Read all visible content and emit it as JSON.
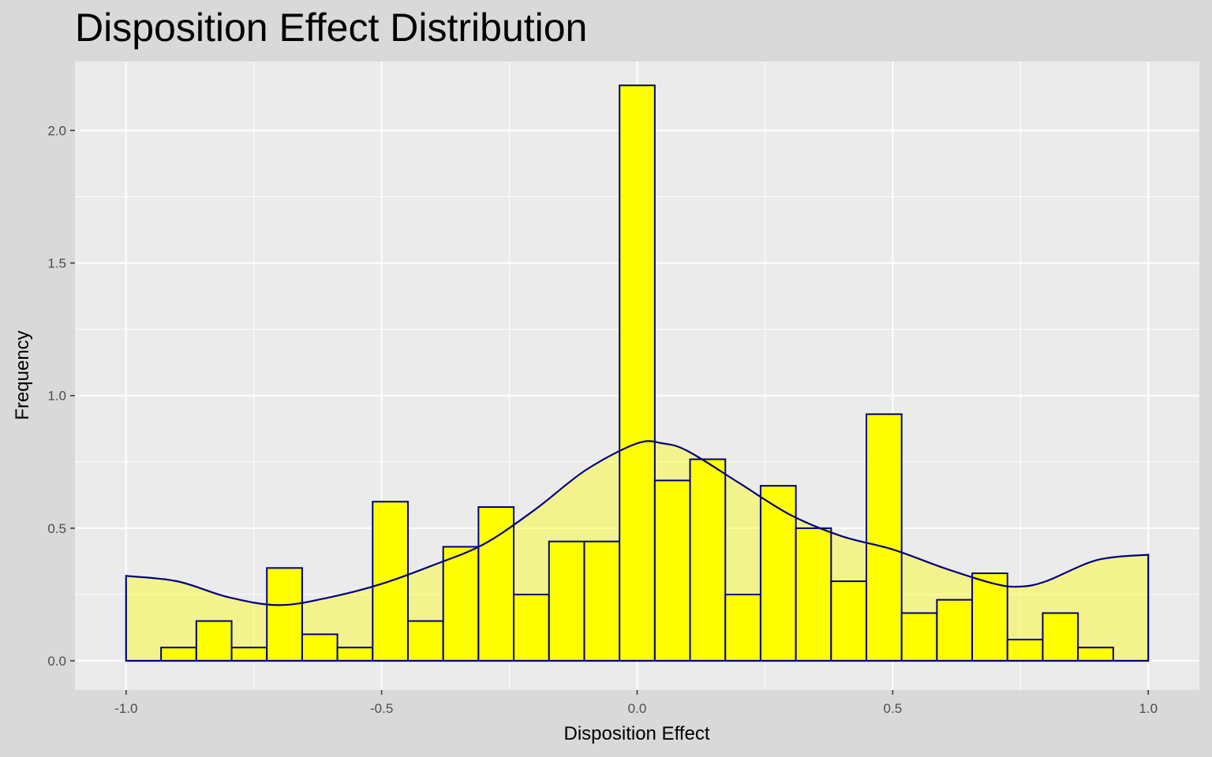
{
  "chart_data": {
    "type": "bar",
    "title": "Disposition Effect Distribution",
    "xlabel": "Disposition Effect",
    "ylabel": "Frequency",
    "xlim": [
      -1.1,
      1.1
    ],
    "ylim": [
      -0.11,
      2.26
    ],
    "x_ticks": [
      -1.0,
      -0.5,
      0.0,
      0.5,
      1.0
    ],
    "x_tick_labels": [
      "-1.0",
      "-0.5",
      "0.0",
      "0.5",
      "1.0"
    ],
    "y_ticks": [
      0.0,
      0.5,
      1.0,
      1.5,
      2.0
    ],
    "y_tick_labels": [
      "0.0",
      "0.5",
      "1.0",
      "1.5",
      "2.0"
    ],
    "grid": true,
    "bin_width": 0.069,
    "bin_centers": [
      -0.897,
      -0.828,
      -0.759,
      -0.69,
      -0.621,
      -0.552,
      -0.483,
      -0.414,
      -0.345,
      -0.276,
      -0.207,
      -0.138,
      -0.069,
      0.0,
      0.069,
      0.138,
      0.207,
      0.276,
      0.345,
      0.414,
      0.483,
      0.552,
      0.621,
      0.69,
      0.759,
      0.828,
      0.897
    ],
    "values": [
      0.05,
      0.15,
      0.05,
      0.35,
      0.1,
      0.05,
      0.6,
      0.15,
      0.43,
      0.58,
      0.25,
      0.45,
      0.45,
      2.17,
      0.68,
      0.76,
      0.25,
      0.66,
      0.5,
      0.3,
      0.93,
      0.18,
      0.23,
      0.33,
      0.08,
      0.18,
      0.05
    ],
    "bar_fill": "#ffff00",
    "bar_outline": "#000080",
    "density_line_color": "#000080",
    "density_fill_color": "#ffff00",
    "density": {
      "x": [
        -1.0,
        -0.9,
        -0.8,
        -0.7,
        -0.6,
        -0.5,
        -0.4,
        -0.3,
        -0.2,
        -0.1,
        0.0,
        0.05,
        0.1,
        0.2,
        0.3,
        0.4,
        0.5,
        0.6,
        0.7,
        0.75,
        0.8,
        0.9,
        1.0
      ],
      "y": [
        0.32,
        0.3,
        0.24,
        0.21,
        0.24,
        0.29,
        0.36,
        0.44,
        0.57,
        0.72,
        0.82,
        0.82,
        0.79,
        0.67,
        0.55,
        0.47,
        0.42,
        0.35,
        0.29,
        0.28,
        0.3,
        0.38,
        0.4
      ]
    }
  }
}
